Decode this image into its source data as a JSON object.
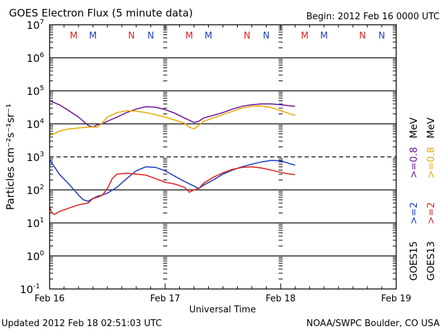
{
  "chart_data": {
    "type": "line",
    "title": "GOES Electron Flux (5 minute data)",
    "begin_label": "Begin: 2012 Feb 16 0000 UTC",
    "xlabel": "Universal Time",
    "ylabel": "Particles cm⁻²s⁻¹sr⁻¹",
    "x_unit": "hours since 2012 Feb 16 0000 UTC",
    "xlim": [
      0,
      72
    ],
    "x_ticks": [
      {
        "h": 0,
        "label": "Feb 16"
      },
      {
        "h": 24,
        "label": "Feb 17"
      },
      {
        "h": 48,
        "label": "Feb 18"
      },
      {
        "h": 72,
        "label": "Feb 19"
      }
    ],
    "yscale": "log",
    "ylim": [
      0.1,
      10000000
    ],
    "y_ticks": [
      {
        "exp": 7,
        "label": "10",
        "sup": "7"
      },
      {
        "exp": 6,
        "label": "10",
        "sup": "6"
      },
      {
        "exp": 5,
        "label": "10",
        "sup": "5"
      },
      {
        "exp": 4,
        "label": "10",
        "sup": "4"
      },
      {
        "exp": 3,
        "label": "10",
        "sup": "3"
      },
      {
        "exp": 2,
        "label": "10",
        "sup": "2"
      },
      {
        "exp": 1,
        "label": "10",
        "sup": "1"
      },
      {
        "exp": 0,
        "label": "10",
        "sup": "0"
      },
      {
        "exp": -1,
        "label": "10",
        "sup": "-1"
      }
    ],
    "threshold": 1000,
    "markers": [
      {
        "h": 5,
        "label": "M",
        "color": "#dd2222"
      },
      {
        "h": 9,
        "label": "M",
        "color": "#1f3fbf"
      },
      {
        "h": 17,
        "label": "N",
        "color": "#dd2222"
      },
      {
        "h": 21,
        "label": "N",
        "color": "#1f3fbf"
      },
      {
        "h": 29,
        "label": "M",
        "color": "#dd2222"
      },
      {
        "h": 33,
        "label": "M",
        "color": "#1f3fbf"
      },
      {
        "h": 41,
        "label": "N",
        "color": "#dd2222"
      },
      {
        "h": 45,
        "label": "N",
        "color": "#1f3fbf"
      },
      {
        "h": 53,
        "label": "M",
        "color": "#dd2222"
      },
      {
        "h": 57,
        "label": "M",
        "color": "#1f3fbf"
      },
      {
        "h": 65,
        "label": "N",
        "color": "#dd2222"
      },
      {
        "h": 69,
        "label": "N",
        "color": "#1f3fbf"
      }
    ],
    "series": [
      {
        "name": "GOES15 >=0.8 MeV",
        "color": "#6a1a9a",
        "x": [
          0,
          2,
          4,
          6,
          8,
          9,
          10,
          11,
          12,
          14,
          16,
          18,
          20,
          22,
          24,
          26,
          28,
          30,
          31,
          32,
          34,
          36,
          38,
          40,
          42,
          44,
          46,
          48,
          50,
          51
        ],
        "y": [
          50000,
          38000,
          25000,
          16000,
          9000,
          8000,
          9500,
          10000,
          12000,
          16000,
          22000,
          28000,
          33000,
          32000,
          27000,
          21000,
          15000,
          11000,
          12000,
          15000,
          18000,
          22000,
          28000,
          34000,
          38000,
          40000,
          40000,
          38000,
          35000,
          34000
        ]
      },
      {
        "name": "GOES13 >=0.8 MeV",
        "color": "#e8a800",
        "x": [
          0,
          1,
          2,
          4,
          6,
          8,
          10,
          11,
          12,
          14,
          16,
          18,
          20,
          22,
          24,
          26,
          28,
          29,
          30,
          31,
          32,
          34,
          36,
          38,
          40,
          42,
          44,
          46,
          48,
          50,
          51
        ],
        "y": [
          4500,
          5000,
          6000,
          7000,
          7500,
          8000,
          8000,
          11000,
          16000,
          22000,
          25000,
          24000,
          22000,
          19000,
          16000,
          13000,
          10500,
          8000,
          7000,
          9000,
          12000,
          15000,
          19000,
          24000,
          30000,
          34000,
          35000,
          31000,
          25000,
          20000,
          18000
        ]
      },
      {
        "name": "GOES15 >=2 MeV",
        "color": "#1f3fbf",
        "x": [
          0,
          1,
          2,
          4,
          6,
          7,
          8,
          9,
          10,
          11,
          12,
          14,
          16,
          18,
          20,
          22,
          24,
          26,
          28,
          30,
          31,
          32,
          34,
          36,
          38,
          40,
          42,
          44,
          46,
          48,
          50,
          51
        ],
        "y": [
          800,
          500,
          300,
          150,
          70,
          50,
          45,
          55,
          65,
          70,
          80,
          120,
          220,
          380,
          500,
          480,
          380,
          260,
          180,
          130,
          110,
          140,
          200,
          300,
          400,
          500,
          600,
          700,
          780,
          760,
          620,
          560
        ]
      },
      {
        "name": "GOES13 >=2 MeV",
        "color": "#dd2222",
        "x": [
          0,
          0.5,
          1,
          2,
          4,
          6,
          7,
          8,
          9,
          10,
          11,
          12,
          13,
          14,
          16,
          18,
          20,
          22,
          24,
          26,
          28,
          29,
          30,
          31,
          32,
          34,
          36,
          38,
          40,
          42,
          44,
          46,
          48,
          50,
          51
        ],
        "y": [
          30,
          20,
          18,
          22,
          28,
          35,
          38,
          40,
          55,
          60,
          70,
          110,
          220,
          300,
          320,
          300,
          280,
          220,
          170,
          150,
          120,
          85,
          100,
          110,
          160,
          240,
          330,
          420,
          480,
          500,
          460,
          400,
          340,
          300,
          290
        ]
      }
    ],
    "legend": {
      "placement": "right",
      "goes15": {
        "sat": "GOES15",
        "a": ">=2",
        "b": ">=0.8",
        "unit": "MeV"
      },
      "goes13": {
        "sat": "GOES13",
        "a": ">=2",
        "b": ">=0.8",
        "unit": "MeV"
      }
    }
  },
  "footer": {
    "updated": "Updated 2012 Feb 18 02:51:03 UTC",
    "source": "NOAA/SWPC Boulder, CO USA"
  }
}
